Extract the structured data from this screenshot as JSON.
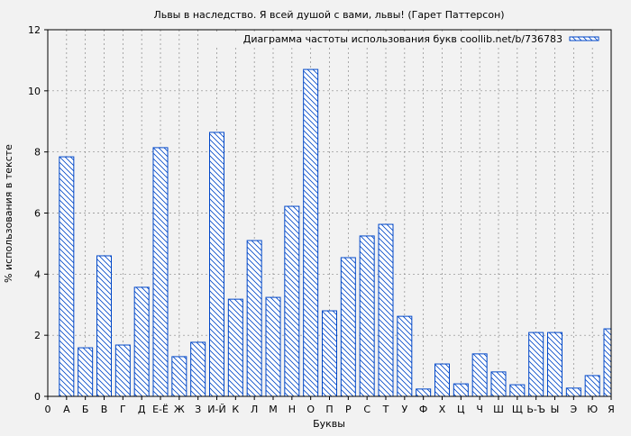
{
  "chart_data": {
    "type": "bar",
    "title": "Львы в наследство. Я всей душой с вами, львы! (Гарет Паттерсон)",
    "xlabel": "Буквы",
    "ylabel": "% использования в тексте",
    "legend": "Диаграмма частоты использования букв coollib.net/b/736783",
    "legend_position": "top-right",
    "x_start_label": "0",
    "categories": [
      "А",
      "Б",
      "В",
      "Г",
      "Д",
      "Е-Ё",
      "Ж",
      "З",
      "И-Й",
      "К",
      "Л",
      "М",
      "Н",
      "О",
      "П",
      "Р",
      "С",
      "Т",
      "У",
      "Ф",
      "Х",
      "Ц",
      "Ч",
      "Ш",
      "Щ",
      "Ь-Ъ",
      "Ы",
      "Э",
      "Ю",
      "Я"
    ],
    "values": [
      7.84,
      1.59,
      4.6,
      1.68,
      3.57,
      8.14,
      1.3,
      1.77,
      8.64,
      3.18,
      5.1,
      3.24,
      6.22,
      10.7,
      2.8,
      4.54,
      5.25,
      5.63,
      2.62,
      0.24,
      1.06,
      0.41,
      1.39,
      0.8,
      0.38,
      2.09,
      2.09,
      0.27,
      0.68,
      2.21
    ],
    "ylim": [
      0,
      12
    ],
    "yticks": [
      "0",
      "2",
      "4",
      "6",
      "8",
      "10",
      "12"
    ],
    "grid": true,
    "bar_color": "#0047c8",
    "hatch": "diagonal"
  }
}
